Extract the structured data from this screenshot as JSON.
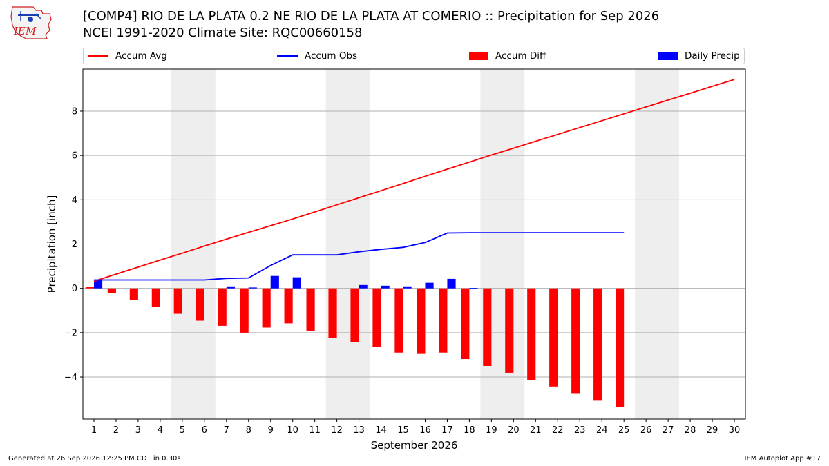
{
  "header": {
    "logo_text": "IEM",
    "title_line1": "[COMP4] RIO DE LA PLATA 0.2 NE RIO DE LA PLATA AT COMERIO :: Precipitation for Sep 2026",
    "title_line2": "NCEI 1991-2020 Climate Site: RQC00660158"
  },
  "legend": {
    "accum_avg": "Accum Avg",
    "accum_obs": "Accum Obs",
    "accum_diff": "Accum Diff",
    "daily_precip": "Daily Precip"
  },
  "colors": {
    "avg": "#ff0000",
    "obs": "#0000ff",
    "diff": "#ff0000",
    "daily": "#0000ff",
    "weekend_band": "#eeeeee",
    "grid": "#b0b0b0"
  },
  "footer": {
    "generated": "Generated at 26 Sep 2026 12:25 PM CDT in 0.30s",
    "app": "IEM Autoplot App #17"
  },
  "chart_data": {
    "type": "bar",
    "title": "[COMP4] RIO DE LA PLATA 0.2 NE RIO DE LA PLATA AT COMERIO :: Precipitation for Sep 2026",
    "xlabel": "September 2026",
    "ylabel": "Precipitation [inch]",
    "x": [
      1,
      2,
      3,
      4,
      5,
      6,
      7,
      8,
      9,
      10,
      11,
      12,
      13,
      14,
      15,
      16,
      17,
      18,
      19,
      20,
      21,
      22,
      23,
      24,
      25,
      26,
      27,
      28,
      29,
      30
    ],
    "xlim": [
      0.5,
      30.5
    ],
    "ylim": [
      -5.9,
      9.9
    ],
    "yticks": [
      -4,
      -2,
      0,
      2,
      4,
      6,
      8
    ],
    "grid": true,
    "legend_position": "top",
    "weekend_bands": [
      [
        5,
        6
      ],
      [
        12,
        13
      ],
      [
        19,
        20
      ],
      [
        26,
        27
      ]
    ],
    "series": [
      {
        "name": "Accum Avg",
        "kind": "line",
        "x": [
          1,
          2,
          3,
          4,
          5,
          6,
          7,
          8,
          9,
          10,
          11,
          12,
          13,
          14,
          15,
          16,
          17,
          18,
          19,
          20,
          21,
          22,
          23,
          24,
          25,
          26,
          27,
          28,
          29,
          30
        ],
        "values": [
          0.32,
          0.64,
          0.96,
          1.28,
          1.59,
          1.91,
          2.22,
          2.53,
          2.83,
          3.13,
          3.45,
          3.77,
          4.09,
          4.41,
          4.73,
          5.06,
          5.38,
          5.7,
          6.02,
          6.33,
          6.64,
          6.95,
          7.26,
          7.57,
          7.88,
          8.19,
          8.5,
          8.81,
          9.12,
          9.43
        ]
      },
      {
        "name": "Accum Obs",
        "kind": "line",
        "x": [
          1,
          2,
          3,
          4,
          5,
          6,
          7,
          8,
          9,
          10,
          11,
          12,
          13,
          14,
          15,
          16,
          17,
          18,
          19,
          20,
          21,
          22,
          23,
          24,
          25
        ],
        "values": [
          0.38,
          0.38,
          0.38,
          0.38,
          0.38,
          0.38,
          0.45,
          0.47,
          1.03,
          1.51,
          1.51,
          1.51,
          1.65,
          1.76,
          1.85,
          2.07,
          2.5,
          2.51,
          2.51,
          2.51,
          2.51,
          2.51,
          2.51,
          2.51,
          2.51
        ]
      },
      {
        "name": "Accum Diff",
        "kind": "bar",
        "x": [
          1,
          2,
          3,
          4,
          5,
          6,
          7,
          8,
          9,
          10,
          11,
          12,
          13,
          14,
          15,
          16,
          17,
          18,
          19,
          20,
          21,
          22,
          23,
          24,
          25
        ],
        "values": [
          0.06,
          -0.22,
          -0.53,
          -0.84,
          -1.15,
          -1.46,
          -1.69,
          -2.0,
          -1.77,
          -1.58,
          -1.93,
          -2.24,
          -2.43,
          -2.64,
          -2.9,
          -2.96,
          -2.9,
          -3.19,
          -3.5,
          -3.81,
          -4.15,
          -4.43,
          -4.73,
          -5.07,
          -5.35
        ]
      },
      {
        "name": "Daily Precip",
        "kind": "bar",
        "x": [
          1,
          2,
          3,
          4,
          5,
          6,
          7,
          8,
          9,
          10,
          11,
          12,
          13,
          14,
          15,
          16,
          17,
          18,
          19,
          20,
          21,
          22,
          23,
          24,
          25
        ],
        "values": [
          0.38,
          0,
          0,
          0,
          0,
          0,
          0.09,
          0.04,
          0.56,
          0.5,
          0,
          0,
          0.15,
          0.12,
          0.09,
          0.25,
          0.43,
          0.02,
          0,
          0,
          0,
          0,
          0,
          0,
          0
        ]
      }
    ]
  }
}
